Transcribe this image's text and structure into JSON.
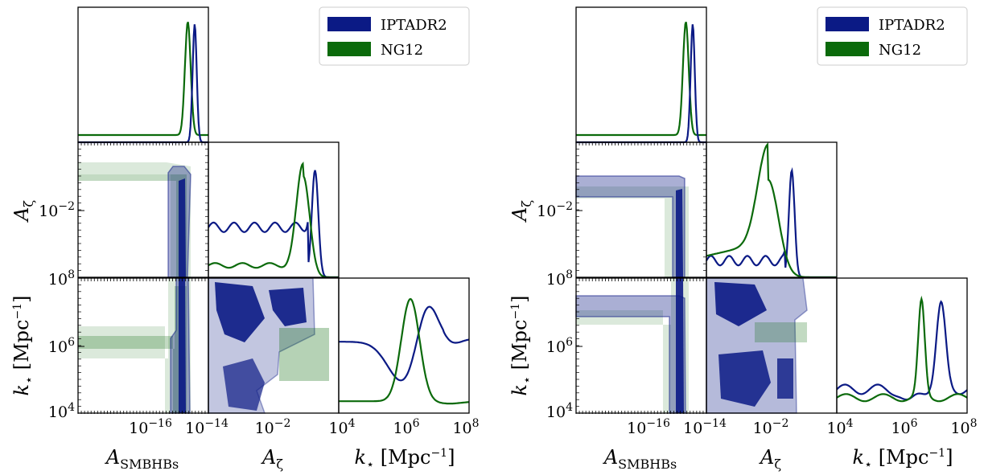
{
  "colors": {
    "iptadr2": "#0b1a85",
    "ng12": "#0b6a0b"
  },
  "legend": [
    "IPTADR2",
    "NG12"
  ],
  "axis_labels": {
    "A_smbhb": "A_SMBHBs",
    "A_zeta": "A_ζ",
    "k_star": "k_⋆ [Mpc^−1]"
  },
  "chart_data": [
    {
      "type": "corner",
      "panel": "left",
      "parameters": [
        "A_SMBHBs",
        "A_ζ",
        "k_⋆ [Mpc^−1]"
      ],
      "series": [
        {
          "name": "IPTADR2",
          "color": "#0b1a85"
        },
        {
          "name": "NG12",
          "color": "#0b6a0b"
        }
      ],
      "ticks": {
        "A_smbhb": {
          "values": [
            -16,
            -14
          ],
          "labels": [
            "10^−16",
            "10^−14"
          ]
        },
        "A_zeta": {
          "values": [
            -2
          ],
          "labels": [
            "10^−2"
          ]
        },
        "k_star": {
          "values": [
            4,
            6,
            8
          ],
          "labels": [
            "10^4",
            "10^6",
            "10^8"
          ]
        }
      },
      "ranges": {
        "log10_A_smbhb": [
          -17.8,
          -14
        ],
        "log10_A_zeta": [
          -4.5,
          1
        ],
        "log10_k_star": [
          4,
          8
        ]
      },
      "marginals": {
        "log10_A_smbhb": {
          "IPTADR2_peak": -14.4,
          "NG12_peak": -14.6
        },
        "log10_A_zeta": {
          "IPTADR2_peak": 0.0,
          "NG12_peak": -0.5
        },
        "log10_k_star": {
          "IPTADR2_peak": 6.7,
          "NG12_peak": 6.2
        }
      }
    },
    {
      "type": "corner",
      "panel": "right",
      "parameters": [
        "A_SMBHBs",
        "A_ζ",
        "k_⋆ [Mpc^−1]"
      ],
      "series": [
        {
          "name": "IPTADR2",
          "color": "#0b1a85"
        },
        {
          "name": "NG12",
          "color": "#0b6a0b"
        }
      ],
      "ticks": {
        "A_smbhb": {
          "values": [
            -16,
            -14
          ],
          "labels": [
            "10^−16",
            "10^−14"
          ]
        },
        "A_zeta": {
          "values": [
            -2
          ],
          "labels": [
            "10^−2"
          ]
        },
        "k_star": {
          "values": [
            4,
            6,
            8
          ],
          "labels": [
            "10^4",
            "10^6",
            "10^8"
          ]
        }
      },
      "ranges": {
        "log10_A_smbhb": [
          -17.8,
          -14
        ],
        "log10_A_zeta": [
          -4.5,
          1
        ],
        "log10_k_star": [
          4,
          8
        ]
      },
      "marginals": {
        "log10_A_smbhb": {
          "IPTADR2_peak": -14.4,
          "NG12_peak": -14.6
        },
        "log10_A_zeta": {
          "IPTADR2_peak": -0.9,
          "NG12_peak": -1.9
        },
        "log10_k_star": {
          "IPTADR2_peak": 7.2,
          "NG12_peak": 6.6
        }
      }
    }
  ]
}
